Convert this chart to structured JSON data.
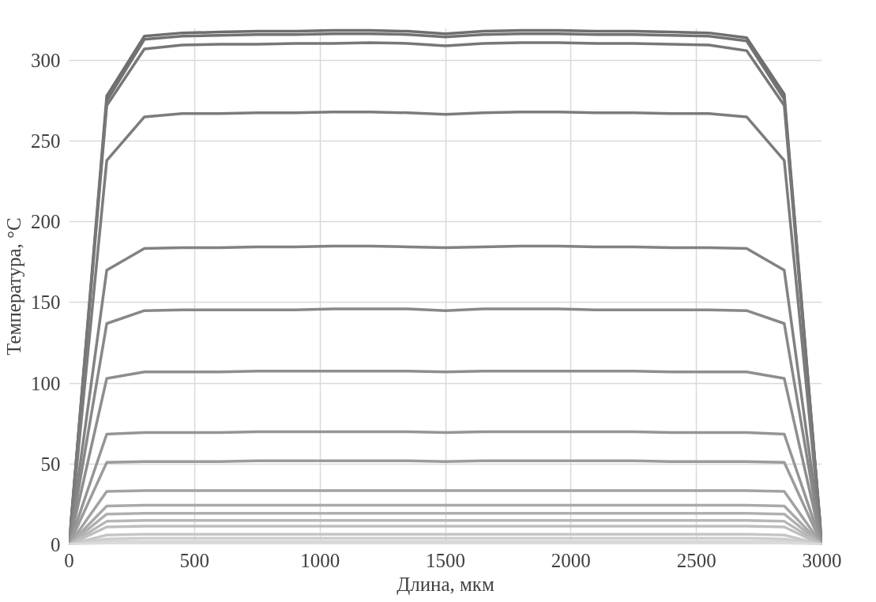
{
  "chart_data": {
    "type": "line",
    "xlabel": "Длина, мкм",
    "ylabel": "Температура, °С",
    "x": [
      0,
      150,
      300,
      450,
      600,
      750,
      900,
      1050,
      1200,
      1350,
      1500,
      1650,
      1800,
      1950,
      2100,
      2250,
      2400,
      2550,
      2700,
      2850,
      3000
    ],
    "xlim": [
      0,
      3000
    ],
    "xticks": [
      0,
      500,
      1000,
      1500,
      2000,
      2500,
      3000
    ],
    "ylim": [
      0,
      320
    ],
    "yticks": [
      0,
      50,
      100,
      150,
      200,
      250,
      300
    ],
    "grid": true,
    "marker": "none",
    "line_style": "solid",
    "series": [
      {
        "color": "#6e6e6e",
        "values": [
          0,
          278,
          315,
          317,
          317.5,
          318,
          318,
          318.5,
          318.5,
          318,
          316.5,
          318,
          318.5,
          318.5,
          318,
          318,
          317.5,
          317,
          314,
          279,
          0
        ]
      },
      {
        "color": "#727272",
        "values": [
          0,
          275,
          313,
          315,
          315.5,
          316,
          316,
          316.5,
          316.5,
          316,
          314.5,
          316,
          316.5,
          316.5,
          316,
          316,
          315.5,
          315,
          312,
          276,
          0
        ]
      },
      {
        "color": "#777777",
        "values": [
          0,
          272,
          307,
          309.5,
          310,
          310,
          310.5,
          310.5,
          311,
          310.5,
          309,
          310.5,
          311,
          311,
          310.5,
          310.5,
          310,
          309.5,
          306,
          272,
          0
        ]
      },
      {
        "color": "#7c7c7c",
        "values": [
          0,
          238,
          265,
          267,
          267,
          267.5,
          267.5,
          268,
          268,
          267.5,
          266.5,
          267.5,
          268,
          268,
          267.5,
          267.5,
          267,
          267,
          265,
          238,
          0
        ]
      },
      {
        "color": "#828282",
        "values": [
          0,
          170,
          183.5,
          184,
          184,
          184.5,
          184.5,
          185,
          185,
          184.5,
          184,
          184.5,
          185,
          185,
          184.5,
          184.5,
          184,
          184,
          183.5,
          170,
          0
        ]
      },
      {
        "color": "#888888",
        "values": [
          0,
          137,
          145,
          145.5,
          145.5,
          145.5,
          145.5,
          146,
          146,
          146,
          145,
          146,
          146,
          146,
          145.5,
          145.5,
          145.5,
          145.5,
          145,
          137,
          0
        ]
      },
      {
        "color": "#8e8e8e",
        "values": [
          0,
          103,
          107,
          107,
          107,
          107.5,
          107.5,
          107.5,
          107.5,
          107.5,
          107,
          107.5,
          107.5,
          107.5,
          107.5,
          107.5,
          107,
          107,
          107,
          103,
          0
        ]
      },
      {
        "color": "#959595",
        "values": [
          0,
          68.5,
          69.5,
          69.5,
          69.5,
          70,
          70,
          70,
          70,
          70,
          69.5,
          70,
          70,
          70,
          70,
          70,
          69.5,
          69.5,
          69.5,
          68.5,
          0
        ]
      },
      {
        "color": "#9b9b9b",
        "values": [
          0,
          51,
          51.5,
          51.5,
          51.5,
          52,
          52,
          52,
          52,
          52,
          51.5,
          52,
          52,
          52,
          52,
          52,
          51.5,
          51.5,
          51.5,
          51,
          0
        ]
      },
      {
        "color": "#a2a2a2",
        "values": [
          0,
          33,
          33.5,
          33.5,
          33.5,
          33.5,
          33.5,
          33.5,
          33.5,
          33.5,
          33.5,
          33.5,
          33.5,
          33.5,
          33.5,
          33.5,
          33.5,
          33.5,
          33.5,
          33,
          0
        ]
      },
      {
        "color": "#a9a9a9",
        "values": [
          0,
          24,
          24.5,
          24.5,
          24.5,
          24.5,
          24.5,
          24.5,
          24.5,
          24.5,
          24.5,
          24.5,
          24.5,
          24.5,
          24.5,
          24.5,
          24.5,
          24.5,
          24.5,
          24,
          0
        ]
      },
      {
        "color": "#b0b0b0",
        "values": [
          0,
          19,
          19.5,
          19.5,
          19.5,
          19.5,
          19.5,
          19.5,
          19.5,
          19.5,
          19.5,
          19.5,
          19.5,
          19.5,
          19.5,
          19.5,
          19.5,
          19.5,
          19.5,
          19,
          0
        ]
      },
      {
        "color": "#b7b7b7",
        "values": [
          0,
          14.5,
          15,
          15,
          15,
          15,
          15,
          15,
          15,
          15,
          15,
          15,
          15,
          15,
          15,
          15,
          15,
          15,
          15,
          14.5,
          0
        ]
      },
      {
        "color": "#bebebe",
        "values": [
          0,
          11,
          11.5,
          11.5,
          11.5,
          11.5,
          11.5,
          11.5,
          11.5,
          11.5,
          11.5,
          11.5,
          11.5,
          11.5,
          11.5,
          11.5,
          11.5,
          11.5,
          11.5,
          11,
          0
        ]
      },
      {
        "color": "#c6c6c6",
        "values": [
          0,
          6,
          6.5,
          6.5,
          6.5,
          6.5,
          6.5,
          6.5,
          6.5,
          6.5,
          6.5,
          6.5,
          6.5,
          6.5,
          6.5,
          6.5,
          6.5,
          6.5,
          6.5,
          6,
          0
        ]
      },
      {
        "color": "#cdcdcd",
        "values": [
          0,
          3.5,
          4,
          4,
          4,
          4,
          4,
          4,
          4,
          4,
          4,
          4,
          4,
          4,
          4,
          4,
          4,
          4,
          4,
          3.5,
          0
        ]
      },
      {
        "color": "#d4d4d4",
        "values": [
          0,
          2,
          2,
          2,
          2,
          2,
          2,
          2,
          2,
          2,
          2,
          2,
          2,
          2,
          2,
          2,
          2,
          2,
          2,
          2,
          0
        ]
      },
      {
        "color": "#dbdbdb",
        "values": [
          0,
          1,
          1,
          1,
          1,
          1,
          1,
          1,
          1,
          1,
          1,
          1,
          1,
          1,
          1,
          1,
          1,
          1,
          1,
          1,
          0
        ]
      }
    ]
  }
}
